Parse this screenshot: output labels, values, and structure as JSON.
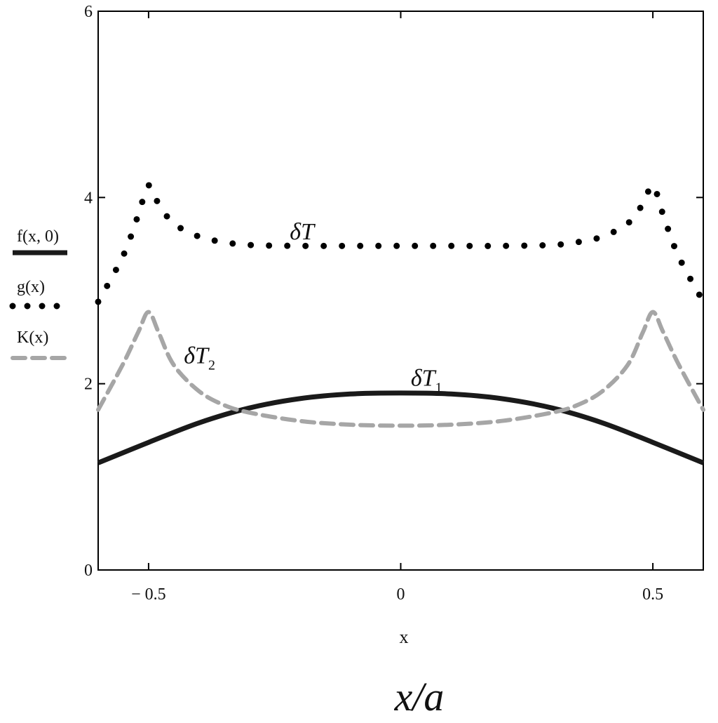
{
  "chart_data": {
    "type": "line",
    "xlabel": "x",
    "xlabel_secondary": "x/a",
    "ylabel": "",
    "xlim": [
      -0.6,
      0.6
    ],
    "ylim": [
      0,
      6
    ],
    "xticks": [
      {
        "value": -0.5,
        "label": "− 0.5"
      },
      {
        "value": 0,
        "label": "0"
      },
      {
        "value": 0.5,
        "label": "0.5"
      }
    ],
    "yticks": [
      {
        "value": 0,
        "label": "0"
      },
      {
        "value": 2,
        "label": "2"
      },
      {
        "value": 4,
        "label": "4"
      },
      {
        "value": 6,
        "label": "6"
      }
    ],
    "legend_position": "left, outside plot",
    "series": [
      {
        "name": "f(x, 0)",
        "style": "solid",
        "color": "#1a1a1a",
        "x": [
          -0.6,
          -0.5,
          -0.4,
          -0.3,
          -0.2,
          -0.1,
          0,
          0.1,
          0.2,
          0.3,
          0.4,
          0.5,
          0.6
        ],
        "y": [
          1.15,
          1.37,
          1.58,
          1.74,
          1.84,
          1.89,
          1.9,
          1.89,
          1.84,
          1.74,
          1.58,
          1.37,
          1.15
        ]
      },
      {
        "name": "g(x)",
        "style": "dotted",
        "color": "#000000",
        "x": [
          -0.6,
          -0.55,
          -0.52,
          -0.5,
          -0.48,
          -0.45,
          -0.4,
          -0.35,
          -0.3,
          -0.2,
          -0.1,
          0,
          0.1,
          0.2,
          0.3,
          0.35,
          0.4,
          0.45,
          0.48,
          0.5,
          0.52,
          0.55,
          0.6
        ],
        "y": [
          2.88,
          3.38,
          3.82,
          4.13,
          3.93,
          3.72,
          3.58,
          3.52,
          3.49,
          3.48,
          3.48,
          3.48,
          3.48,
          3.48,
          3.49,
          3.52,
          3.58,
          3.72,
          3.93,
          4.13,
          3.82,
          3.38,
          2.88
        ]
      },
      {
        "name": "K(x)",
        "style": "dashed",
        "color": "#a6a6a6",
        "x": [
          -0.6,
          -0.55,
          -0.52,
          -0.5,
          -0.48,
          -0.45,
          -0.4,
          -0.35,
          -0.3,
          -0.2,
          -0.1,
          0,
          0.1,
          0.2,
          0.3,
          0.35,
          0.4,
          0.45,
          0.48,
          0.5,
          0.52,
          0.55,
          0.6
        ],
        "y": [
          1.72,
          2.22,
          2.56,
          2.77,
          2.55,
          2.2,
          1.92,
          1.77,
          1.69,
          1.6,
          1.56,
          1.55,
          1.56,
          1.6,
          1.69,
          1.77,
          1.92,
          2.2,
          2.55,
          2.77,
          2.56,
          2.22,
          1.72
        ]
      }
    ],
    "annotations": [
      {
        "text": "δT",
        "sub": "",
        "x": -0.22,
        "y": 3.55
      },
      {
        "text": "δT",
        "sub": "2",
        "x": -0.43,
        "y": 2.22
      },
      {
        "text": "δT",
        "sub": "1",
        "x": 0.02,
        "y": 1.98
      }
    ]
  }
}
